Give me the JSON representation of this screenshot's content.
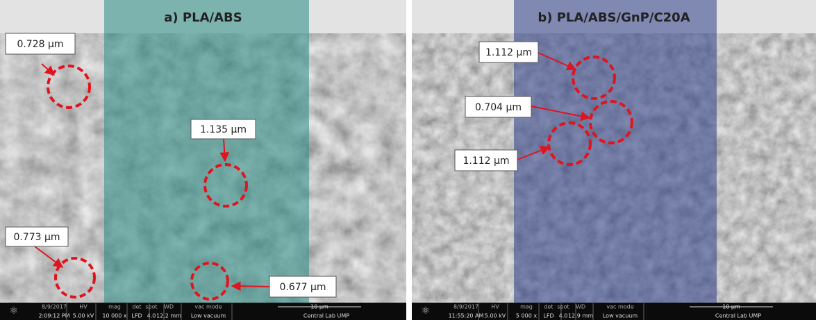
{
  "panels": [
    {
      "title": "a) PLA/ABS",
      "labels": [
        "0.728 µm",
        "1.135 µm",
        "0.773 µm",
        "0.677 µm"
      ],
      "databar": {
        "date": "8/9/2017",
        "time": "2:09:12 PM",
        "hv_label": "HV",
        "hv": "5.00 kV",
        "mag_label": "mag",
        "mag": "10 000 x",
        "det_label": "det",
        "det": "LFD",
        "spot_label": "spot",
        "spot": "4.0",
        "wd_label": "WD",
        "wd": "12.2 mm",
        "vac_label": "vac mode",
        "vac": "Low vacuum",
        "scale": "10 µm",
        "lab": "Central Lab UMP"
      }
    },
    {
      "title": "b) PLA/ABS/GnP/C20A",
      "labels": [
        "1.112 µm",
        "0.704 µm",
        "1.112 µm"
      ],
      "databar": {
        "date": "8/9/2017",
        "time": "11:55:20 AM",
        "hv_label": "HV",
        "hv": "5.00 kV",
        "mag_label": "mag",
        "mag": "5 000 x",
        "det_label": "det",
        "det": "LFD",
        "spot_label": "spot",
        "spot": "4.0",
        "wd_label": "WD",
        "wd": "12.9 mm",
        "vac_label": "vac mode",
        "vac": "Low vacuum",
        "scale": "10 µm",
        "lab": "Central Lab UMP"
      }
    }
  ]
}
